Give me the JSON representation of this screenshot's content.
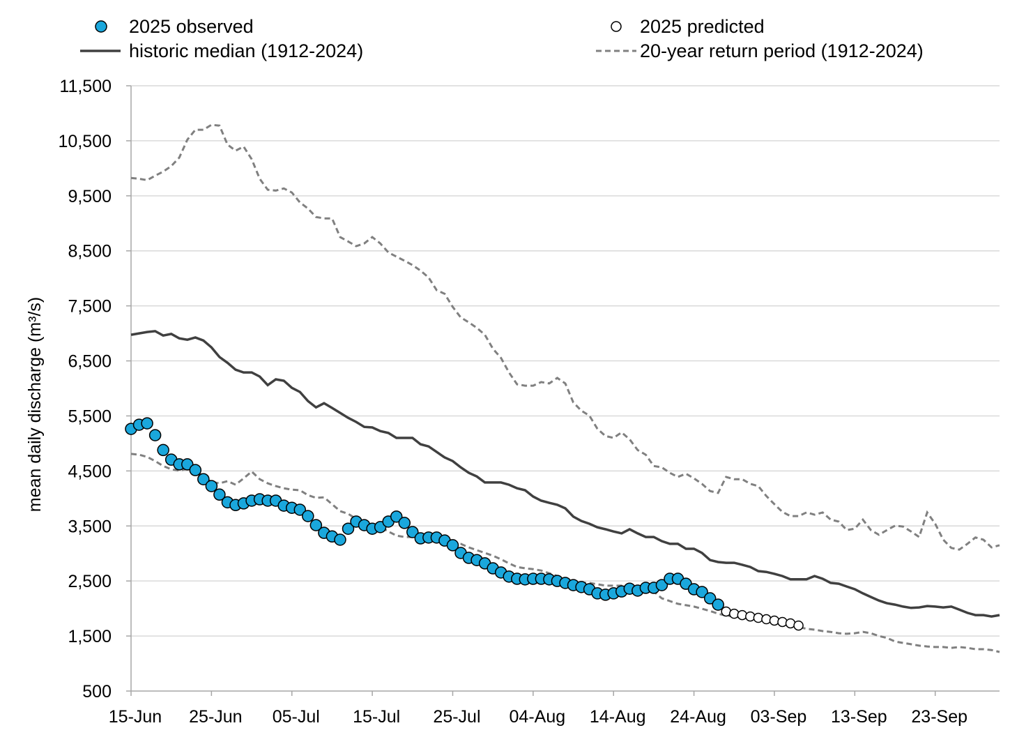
{
  "chart_data": {
    "type": "line",
    "title": "",
    "xlabel": "",
    "ylabel": "mean daily discharge (m³/s)",
    "ylim": [
      500,
      11500
    ],
    "yticks": [
      "500",
      "1,500",
      "2,500",
      "3,500",
      "4,500",
      "5,500",
      "6,500",
      "7,500",
      "8,500",
      "9,500",
      "10,500",
      "11,500"
    ],
    "ytick_values": [
      500,
      1500,
      2500,
      3500,
      4500,
      5500,
      6500,
      7500,
      8500,
      9500,
      10500,
      11500
    ],
    "xticks": [
      "15-Jun",
      "25-Jun",
      "05-Jul",
      "15-Jul",
      "25-Jul",
      "04-Aug",
      "14-Aug",
      "24-Aug",
      "03-Sep",
      "13-Sep",
      "23-Sep"
    ],
    "xlim": [
      "15-Jun",
      "01-Oct"
    ],
    "grid": "horizontal",
    "legend_position": "top",
    "colors": {
      "observed": "#1AA7DC",
      "median": "#404040",
      "return_period": "#808080",
      "grid": "#d9d9d9"
    },
    "dates": [
      "15-Jun",
      "16-Jun",
      "17-Jun",
      "18-Jun",
      "19-Jun",
      "20-Jun",
      "21-Jun",
      "22-Jun",
      "23-Jun",
      "24-Jun",
      "25-Jun",
      "26-Jun",
      "27-Jun",
      "28-Jun",
      "29-Jun",
      "30-Jun",
      "01-Jul",
      "02-Jul",
      "03-Jul",
      "04-Jul",
      "05-Jul",
      "06-Jul",
      "07-Jul",
      "08-Jul",
      "09-Jul",
      "10-Jul",
      "11-Jul",
      "12-Jul",
      "13-Jul",
      "14-Jul",
      "15-Jul",
      "16-Jul",
      "17-Jul",
      "18-Jul",
      "19-Jul",
      "20-Jul",
      "21-Jul",
      "22-Jul",
      "23-Jul",
      "24-Jul",
      "25-Jul",
      "26-Jul",
      "27-Jul",
      "28-Jul",
      "29-Jul",
      "30-Jul",
      "31-Jul",
      "01-Aug",
      "02-Aug",
      "03-Aug",
      "04-Aug",
      "05-Aug",
      "06-Aug",
      "07-Aug",
      "08-Aug",
      "09-Aug",
      "10-Aug",
      "11-Aug",
      "12-Aug",
      "13-Aug",
      "14-Aug",
      "15-Aug",
      "16-Aug",
      "17-Aug",
      "18-Aug",
      "19-Aug",
      "20-Aug",
      "21-Aug",
      "22-Aug",
      "23-Aug",
      "24-Aug",
      "25-Aug",
      "26-Aug",
      "27-Aug",
      "28-Aug",
      "29-Aug",
      "30-Aug",
      "31-Aug",
      "01-Sep",
      "02-Sep",
      "03-Sep",
      "04-Sep",
      "05-Sep",
      "06-Sep",
      "07-Sep",
      "08-Sep",
      "09-Sep",
      "10-Sep",
      "11-Sep",
      "12-Sep",
      "13-Sep",
      "14-Sep",
      "15-Sep",
      "16-Sep",
      "17-Sep",
      "18-Sep",
      "19-Sep",
      "20-Sep",
      "21-Sep",
      "22-Sep",
      "23-Sep",
      "24-Sep",
      "25-Sep",
      "26-Sep",
      "27-Sep",
      "28-Sep",
      "29-Sep",
      "30-Sep",
      "01-Oct"
    ],
    "series": [
      {
        "name": "2025 observed",
        "style": "filled-circle",
        "values": [
          5264,
          5340,
          5365,
          5150,
          4880,
          4705,
          4620,
          4620,
          4515,
          4350,
          4225,
          4070,
          3930,
          3880,
          3910,
          3960,
          3985,
          3960,
          3960,
          3870,
          3830,
          3795,
          3680,
          3515,
          3375,
          3310,
          3250,
          3450,
          3580,
          3515,
          3450,
          3480,
          3580,
          3670,
          3555,
          3390,
          3275,
          3290,
          3290,
          3235,
          3150,
          3010,
          2920,
          2880,
          2820,
          2730,
          2655,
          2580,
          2540,
          2530,
          2540,
          2540,
          2530,
          2500,
          2465,
          2425,
          2390,
          2350,
          2275,
          2250,
          2275,
          2310,
          2360,
          2325,
          2375,
          2375,
          2425,
          2540,
          2540,
          2450,
          2350,
          2300,
          2185,
          2070,
          null,
          null,
          null,
          null,
          null,
          null,
          null,
          null,
          null,
          null,
          null,
          null,
          null,
          null,
          null,
          null,
          null,
          null,
          null,
          null,
          null,
          null,
          null,
          null,
          null,
          null,
          null,
          null,
          null,
          null,
          null,
          null,
          null,
          null,
          null
        ]
      },
      {
        "name": "2025 predicted",
        "style": "open-circle",
        "values": [
          null,
          null,
          null,
          null,
          null,
          null,
          null,
          null,
          null,
          null,
          null,
          null,
          null,
          null,
          null,
          null,
          null,
          null,
          null,
          null,
          null,
          null,
          null,
          null,
          null,
          null,
          null,
          null,
          null,
          null,
          null,
          null,
          null,
          null,
          null,
          null,
          null,
          null,
          null,
          null,
          null,
          null,
          null,
          null,
          null,
          null,
          null,
          null,
          null,
          null,
          null,
          null,
          null,
          null,
          null,
          null,
          null,
          null,
          null,
          null,
          null,
          null,
          null,
          null,
          null,
          null,
          null,
          null,
          null,
          null,
          null,
          null,
          null,
          null,
          1945,
          1905,
          1880,
          1855,
          1830,
          1805,
          1780,
          1755,
          1730,
          1690,
          null,
          null,
          null,
          null,
          null,
          null,
          null,
          null,
          null,
          null,
          null,
          null,
          null,
          null,
          null,
          null,
          null,
          null,
          null,
          null,
          null,
          null,
          null,
          null,
          null
        ]
      },
      {
        "name": "historic median (1912-2024)",
        "style": "solid",
        "values": [
          6975,
          7000,
          7025,
          7040,
          6960,
          6990,
          6910,
          6885,
          6925,
          6870,
          6745,
          6570,
          6465,
          6340,
          6290,
          6290,
          6215,
          6060,
          6165,
          6140,
          6010,
          5935,
          5770,
          5655,
          5730,
          5645,
          5555,
          5465,
          5390,
          5300,
          5290,
          5225,
          5190,
          5100,
          5100,
          5100,
          4985,
          4945,
          4845,
          4745,
          4680,
          4565,
          4465,
          4400,
          4290,
          4290,
          4290,
          4250,
          4185,
          4150,
          4035,
          3960,
          3920,
          3885,
          3820,
          3670,
          3590,
          3540,
          3475,
          3440,
          3400,
          3365,
          3440,
          3365,
          3300,
          3300,
          3225,
          3175,
          3175,
          3085,
          3085,
          3010,
          2880,
          2845,
          2830,
          2830,
          2795,
          2755,
          2680,
          2665,
          2630,
          2590,
          2530,
          2530,
          2530,
          2590,
          2540,
          2465,
          2450,
          2400,
          2350,
          2275,
          2210,
          2145,
          2095,
          2070,
          2035,
          2010,
          2020,
          2045,
          2035,
          2020,
          2035,
          1980,
          1920,
          1880,
          1880,
          1855,
          1880
        ]
      },
      {
        "name": "20-year return period (1912-2024)",
        "style": "dashed",
        "values": [
          9825,
          9810,
          9785,
          9865,
          9940,
          10040,
          10195,
          10520,
          10700,
          10700,
          10790,
          10775,
          10430,
          10320,
          10395,
          10165,
          9810,
          9610,
          9595,
          9635,
          9560,
          9380,
          9270,
          9115,
          9090,
          9090,
          8750,
          8670,
          8585,
          8635,
          8750,
          8635,
          8470,
          8395,
          8320,
          8240,
          8140,
          8015,
          7785,
          7720,
          7480,
          7290,
          7200,
          7100,
          6975,
          6720,
          6555,
          6290,
          6075,
          6050,
          6050,
          6115,
          6090,
          6190,
          6090,
          5745,
          5595,
          5505,
          5265,
          5135,
          5100,
          5200,
          5075,
          4880,
          4795,
          4590,
          4565,
          4465,
          4390,
          4450,
          4365,
          4265,
          4135,
          4100,
          4390,
          4350,
          4350,
          4265,
          4225,
          4045,
          3895,
          3755,
          3680,
          3680,
          3745,
          3705,
          3745,
          3615,
          3580,
          3425,
          3450,
          3615,
          3425,
          3340,
          3425,
          3505,
          3490,
          3400,
          3300,
          3745,
          3540,
          3250,
          3100,
          3070,
          3175,
          3290,
          3250,
          3110,
          3150
        ]
      },
      {
        "name": "20-year return period (1912-2024)",
        "style": "dashed",
        "legend": false,
        "values": [
          4810,
          4795,
          4755,
          4680,
          4590,
          4530,
          4505,
          4540,
          4540,
          4390,
          4300,
          4275,
          4315,
          4250,
          4365,
          4490,
          4350,
          4275,
          4225,
          4185,
          4160,
          4150,
          4060,
          4010,
          4020,
          3895,
          3770,
          3720,
          3630,
          3555,
          3490,
          3480,
          3400,
          3325,
          3300,
          3300,
          3290,
          3300,
          3275,
          3235,
          3200,
          3175,
          3110,
          3060,
          3010,
          2960,
          2895,
          2820,
          2755,
          2730,
          2715,
          2690,
          2640,
          2590,
          2540,
          2500,
          2465,
          2465,
          2440,
          2415,
          2415,
          2415,
          2415,
          2390,
          2335,
          2310,
          2185,
          2135,
          2085,
          2060,
          2035,
          1995,
          1955,
          1905,
          1870,
          1855,
          1830,
          1820,
          1790,
          1780,
          1740,
          1715,
          1690,
          1665,
          1630,
          1615,
          1590,
          1575,
          1550,
          1540,
          1550,
          1575,
          1550,
          1500,
          1465,
          1400,
          1375,
          1350,
          1325,
          1310,
          1300,
          1300,
          1285,
          1300,
          1285,
          1260,
          1260,
          1245,
          1210
        ]
      }
    ]
  }
}
